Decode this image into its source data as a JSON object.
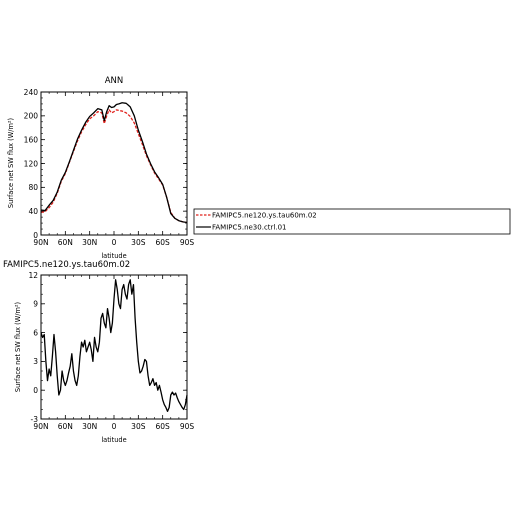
{
  "chart_data": [
    {
      "type": "line",
      "title": "ANN",
      "xlabel": "latitude",
      "ylabel": "Surface net SW flux (W/m²)",
      "xlim": [
        90,
        -90
      ],
      "ylim": [
        0,
        240
      ],
      "xticks": [
        "90N",
        "60N",
        "30N",
        "0",
        "30S",
        "60S",
        "90S"
      ],
      "yticks": [
        "0",
        "40",
        "80",
        "120",
        "160",
        "200",
        "240"
      ],
      "legend_placement": "right",
      "series": [
        {
          "name": "FAMIPC5.ne120.ys.tau60m.02",
          "color": "#e0201b",
          "style": "dashed",
          "x": [
            90,
            85,
            80,
            75,
            70,
            65,
            60,
            55,
            50,
            45,
            40,
            35,
            30,
            25,
            20,
            15,
            12,
            9,
            6,
            3,
            0,
            -3,
            -6,
            -10,
            -15,
            -20,
            -25,
            -30,
            -35,
            -40,
            -45,
            -50,
            -55,
            -60,
            -65,
            -70,
            -75,
            -80,
            -85,
            -90
          ],
          "y": [
            38,
            39,
            46,
            55,
            70,
            90,
            103,
            122,
            140,
            158,
            173,
            185,
            195,
            200,
            207,
            205,
            187,
            200,
            210,
            205,
            207,
            210,
            209,
            208,
            205,
            199,
            188,
            170,
            152,
            133,
            118,
            104,
            94,
            84,
            63,
            38,
            28,
            24,
            22,
            21
          ]
        },
        {
          "name": "FAMIPC5.ne30.ctrl.01",
          "color": "#000000",
          "style": "solid",
          "x": [
            90,
            85,
            80,
            75,
            70,
            65,
            60,
            55,
            50,
            45,
            40,
            35,
            30,
            25,
            20,
            15,
            12,
            9,
            6,
            3,
            0,
            -3,
            -6,
            -10,
            -15,
            -20,
            -25,
            -30,
            -35,
            -40,
            -45,
            -50,
            -55,
            -60,
            -65,
            -70,
            -75,
            -80,
            -85,
            -90
          ],
          "y": [
            42,
            41,
            50,
            58,
            72,
            92,
            105,
            123,
            142,
            161,
            176,
            189,
            199,
            205,
            212,
            210,
            192,
            207,
            217,
            214,
            215,
            219,
            220,
            222,
            221,
            215,
            200,
            176,
            157,
            136,
            120,
            106,
            96,
            85,
            63,
            36,
            28,
            24,
            22,
            21
          ]
        }
      ]
    },
    {
      "type": "line",
      "title": "FAMIPC5.ne120.ys.tau60m.02",
      "xlabel": "latitude",
      "ylabel": "Surface net SW flux (W/m²)",
      "xlim": [
        90,
        -90
      ],
      "ylim": [
        -3,
        12
      ],
      "xticks": [
        "90N",
        "60N",
        "30N",
        "0",
        "30S",
        "60S",
        "90S"
      ],
      "yticks": [
        "-3",
        "0",
        "3",
        "6",
        "9",
        "12"
      ],
      "series": [
        {
          "color": "#000000",
          "style": "solid",
          "x": [
            90,
            88,
            86,
            84,
            82,
            80,
            78,
            76,
            74,
            72,
            70,
            68,
            66,
            64,
            62,
            60,
            58,
            56,
            54,
            52,
            50,
            48,
            46,
            44,
            42,
            40,
            38,
            36,
            34,
            32,
            30,
            28,
            26,
            24,
            22,
            20,
            18,
            16,
            14,
            12,
            10,
            8,
            6,
            4,
            2,
            0,
            -2,
            -4,
            -6,
            -8,
            -10,
            -12,
            -14,
            -16,
            -18,
            -20,
            -22,
            -24,
            -26,
            -28,
            -30,
            -32,
            -34,
            -36,
            -38,
            -40,
            -42,
            -44,
            -46,
            -48,
            -50,
            -52,
            -54,
            -56,
            -58,
            -60,
            -62,
            -64,
            -66,
            -68,
            -70,
            -72,
            -74,
            -76,
            -78,
            -80,
            -82,
            -84,
            -86,
            -88,
            -90
          ],
          "y": [
            6.0,
            5.5,
            5.8,
            3.0,
            1.0,
            2.2,
            1.5,
            3.5,
            5.8,
            4.0,
            1.5,
            -0.5,
            0.0,
            2.0,
            1.0,
            0.5,
            1.0,
            1.8,
            2.5,
            3.8,
            2.0,
            1.0,
            0.5,
            1.5,
            3.5,
            5.0,
            4.5,
            5.2,
            4.0,
            4.5,
            5.0,
            4.2,
            3.0,
            5.5,
            4.5,
            4.0,
            5.0,
            7.5,
            8.0,
            7.0,
            6.5,
            8.5,
            7.5,
            6.0,
            7.0,
            9.5,
            11.5,
            10.5,
            9.0,
            8.5,
            10.5,
            11.0,
            10.0,
            9.5,
            11.0,
            11.5,
            10.0,
            11.0,
            7.5,
            5.0,
            3.0,
            1.8,
            2.0,
            2.5,
            3.2,
            3.0,
            1.5,
            0.5,
            0.8,
            1.2,
            0.5,
            0.8,
            0.0,
            0.5,
            -0.2,
            -1.0,
            -1.5,
            -1.8,
            -2.2,
            -1.8,
            -0.5,
            -0.2,
            -0.5,
            -0.3,
            -0.8,
            -1.2,
            -1.5,
            -1.8,
            -2.0,
            -1.5,
            -0.5
          ]
        }
      ]
    }
  ]
}
